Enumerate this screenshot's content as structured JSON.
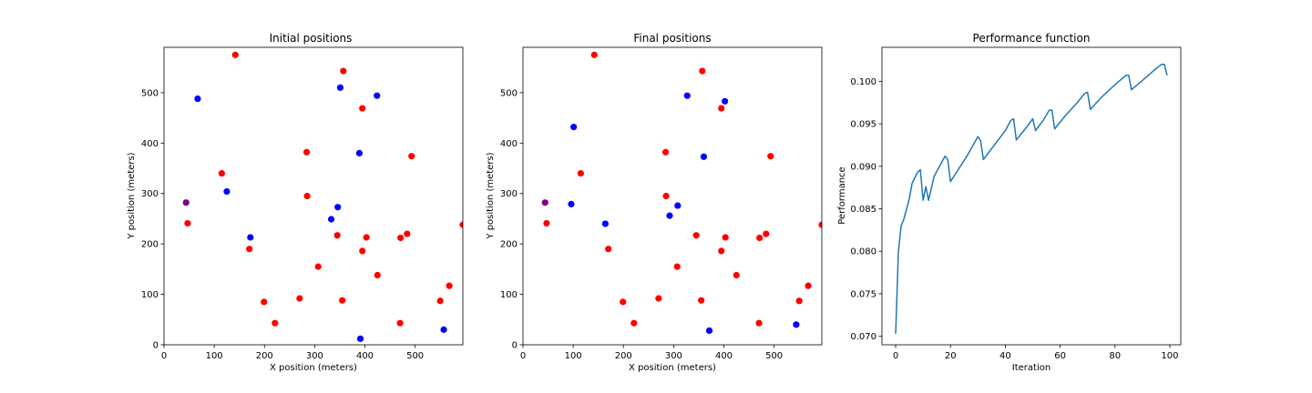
{
  "colors": {
    "red": "#ff0000",
    "blue": "#0000ff",
    "purple": "#800080",
    "line": "#1f77b4"
  },
  "chart_data": [
    {
      "type": "scatter",
      "title": "Initial positions",
      "xlabel": "X position (meters)",
      "ylabel": "Y position (meters)",
      "xlim": [
        0,
        595
      ],
      "ylim": [
        0,
        590
      ],
      "xticks": [
        0,
        100,
        200,
        300,
        400,
        500
      ],
      "yticks": [
        0,
        100,
        200,
        300,
        400,
        500
      ],
      "series": [
        {
          "color": "red",
          "points": [
            [
              142,
              575
            ],
            [
              357,
              543
            ],
            [
              395,
              469
            ],
            [
              115,
              340
            ],
            [
              284,
              382
            ],
            [
              493,
              374
            ],
            [
              285,
              295
            ],
            [
              47,
              241
            ],
            [
              170,
              190
            ],
            [
              345,
              217
            ],
            [
              403,
              213
            ],
            [
              471,
              212
            ],
            [
              484,
              220
            ],
            [
              395,
              186
            ],
            [
              307,
              155
            ],
            [
              425,
              138
            ],
            [
              199,
              85
            ],
            [
              270,
              92
            ],
            [
              355,
              88
            ],
            [
              221,
              43
            ],
            [
              550,
              87
            ],
            [
              568,
              117
            ],
            [
              470,
              43
            ],
            [
              595,
              238
            ]
          ]
        },
        {
          "color": "blue",
          "points": [
            [
              67,
              488
            ],
            [
              351,
              510
            ],
            [
              424,
              494
            ],
            [
              389,
              380
            ],
            [
              125,
              304
            ],
            [
              346,
              273
            ],
            [
              333,
              249
            ],
            [
              172,
              213
            ],
            [
              557,
              30
            ],
            [
              391,
              12
            ]
          ]
        },
        {
          "color": "purple",
          "points": [
            [
              44,
              282
            ]
          ]
        }
      ]
    },
    {
      "type": "scatter",
      "title": "Final positions",
      "xlabel": "X position (meters)",
      "ylabel": "Y position (meters)",
      "xlim": [
        0,
        595
      ],
      "ylim": [
        0,
        590
      ],
      "xticks": [
        0,
        100,
        200,
        300,
        400,
        500
      ],
      "yticks": [
        0,
        100,
        200,
        300,
        400,
        500
      ],
      "series": [
        {
          "color": "red",
          "points": [
            [
              142,
              575
            ],
            [
              357,
              543
            ],
            [
              395,
              469
            ],
            [
              115,
              340
            ],
            [
              284,
              382
            ],
            [
              493,
              374
            ],
            [
              285,
              295
            ],
            [
              47,
              241
            ],
            [
              170,
              190
            ],
            [
              345,
              217
            ],
            [
              403,
              213
            ],
            [
              471,
              212
            ],
            [
              484,
              220
            ],
            [
              395,
              186
            ],
            [
              307,
              155
            ],
            [
              425,
              138
            ],
            [
              199,
              85
            ],
            [
              270,
              92
            ],
            [
              355,
              88
            ],
            [
              221,
              43
            ],
            [
              550,
              87
            ],
            [
              568,
              117
            ],
            [
              470,
              43
            ],
            [
              595,
              238
            ]
          ]
        },
        {
          "color": "blue",
          "points": [
            [
              327,
              494
            ],
            [
              402,
              483
            ],
            [
              101,
              432
            ],
            [
              360,
              373
            ],
            [
              96,
              279
            ],
            [
              308,
              276
            ],
            [
              292,
              256
            ],
            [
              164,
              240
            ],
            [
              371,
              28
            ],
            [
              544,
              40
            ]
          ]
        },
        {
          "color": "purple",
          "points": [
            [
              44,
              282
            ]
          ]
        }
      ]
    },
    {
      "type": "line",
      "title": "Performance function",
      "xlabel": "Iteration",
      "ylabel": "Performance",
      "xlim": [
        -5,
        104
      ],
      "ylim": [
        0.069,
        0.104
      ],
      "xticks": [
        0,
        20,
        40,
        60,
        80,
        100
      ],
      "yticks": [
        0.07,
        0.075,
        0.08,
        0.085,
        0.09,
        0.095,
        0.1
      ],
      "series": [
        {
          "color": "line",
          "points": [
            [
              0,
              0.0703
            ],
            [
              1,
              0.08
            ],
            [
              2,
              0.083
            ],
            [
              3,
              0.0838
            ],
            [
              4,
              0.085
            ],
            [
              5,
              0.0862
            ],
            [
              6,
              0.088
            ],
            [
              8,
              0.0893
            ],
            [
              9,
              0.0896
            ],
            [
              10,
              0.086
            ],
            [
              11,
              0.0876
            ],
            [
              12,
              0.086
            ],
            [
              14,
              0.0888
            ],
            [
              16,
              0.09
            ],
            [
              18,
              0.0912
            ],
            [
              19,
              0.0908
            ],
            [
              20,
              0.0882
            ],
            [
              22,
              0.0892
            ],
            [
              26,
              0.0912
            ],
            [
              30,
              0.0935
            ],
            [
              31,
              0.093
            ],
            [
              32,
              0.0908
            ],
            [
              36,
              0.0925
            ],
            [
              40,
              0.0942
            ],
            [
              42,
              0.0954
            ],
            [
              43,
              0.0956
            ],
            [
              44,
              0.0931
            ],
            [
              48,
              0.0947
            ],
            [
              50,
              0.0956
            ],
            [
              51,
              0.0942
            ],
            [
              54,
              0.0955
            ],
            [
              56,
              0.0966
            ],
            [
              57,
              0.0966
            ],
            [
              58,
              0.0944
            ],
            [
              62,
              0.096
            ],
            [
              66,
              0.0974
            ],
            [
              69,
              0.0986
            ],
            [
              70,
              0.0987
            ],
            [
              71,
              0.0967
            ],
            [
              75,
              0.0981
            ],
            [
              80,
              0.0996
            ],
            [
              84,
              0.1007
            ],
            [
              85,
              0.1007
            ],
            [
              86,
              0.099
            ],
            [
              90,
              0.1001
            ],
            [
              95,
              0.1015
            ],
            [
              97,
              0.102
            ],
            [
              98,
              0.102
            ],
            [
              99,
              0.1007
            ]
          ]
        }
      ]
    }
  ]
}
